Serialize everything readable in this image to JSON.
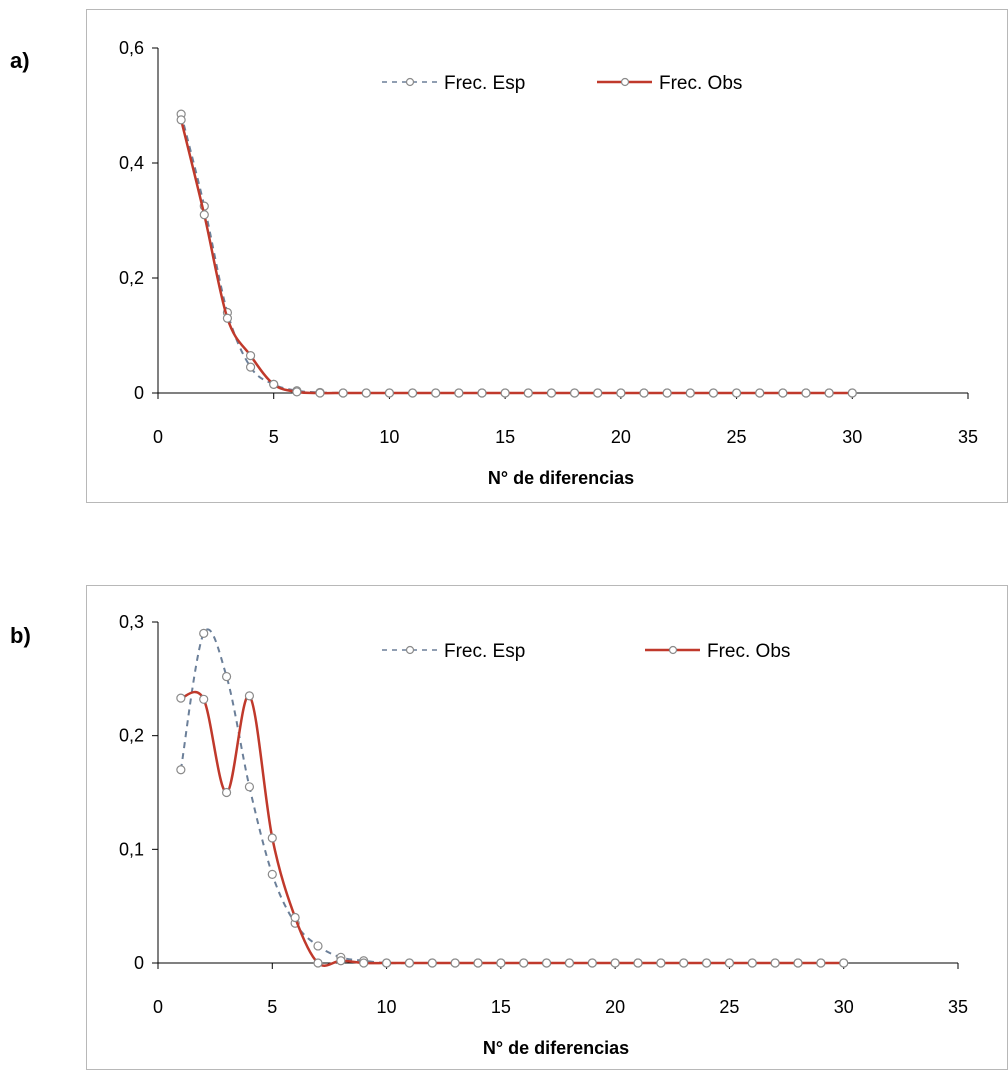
{
  "chart_data": [
    {
      "panel_label": "a)",
      "type": "line",
      "xlabel": "N° de diferencias",
      "ylabel": "",
      "xlim": [
        0,
        35
      ],
      "ylim": [
        0,
        0.6
      ],
      "xticks": [
        0,
        5,
        10,
        15,
        20,
        25,
        30,
        35
      ],
      "xtick_labels": [
        "0",
        "5",
        "10",
        "15",
        "20",
        "25",
        "30",
        "35"
      ],
      "yticks": [
        0,
        0.2,
        0.4,
        0.6
      ],
      "ytick_labels": [
        "0",
        "0,2",
        "0,4",
        "0,6"
      ],
      "grid": false,
      "legend": "top-center",
      "series": [
        {
          "name": "Frec. Esp",
          "style": "dashed",
          "color": "#6b7f99",
          "x": [
            1,
            2,
            3,
            4,
            5,
            6,
            7,
            8,
            9,
            10,
            11,
            12,
            13,
            14,
            15,
            16,
            17,
            18,
            19,
            20,
            21,
            22,
            23,
            24,
            25,
            26,
            27,
            28,
            29,
            30
          ],
          "y": [
            0.485,
            0.325,
            0.14,
            0.045,
            0.015,
            0.004,
            0.001,
            0,
            0,
            0,
            0,
            0,
            0,
            0,
            0,
            0,
            0,
            0,
            0,
            0,
            0,
            0,
            0,
            0,
            0,
            0,
            0,
            0,
            0,
            0
          ]
        },
        {
          "name": "Frec. Obs",
          "style": "solid",
          "color": "#c0392b",
          "x": [
            1,
            2,
            3,
            4,
            5,
            6,
            7,
            8,
            9,
            10,
            11,
            12,
            13,
            14,
            15,
            16,
            17,
            18,
            19,
            20,
            21,
            22,
            23,
            24,
            25,
            26,
            27,
            28,
            29,
            30
          ],
          "y": [
            0.475,
            0.31,
            0.13,
            0.065,
            0.015,
            0.002,
            0,
            0,
            0,
            0,
            0,
            0,
            0,
            0,
            0,
            0,
            0,
            0,
            0,
            0,
            0,
            0,
            0,
            0,
            0,
            0,
            0,
            0,
            0,
            0
          ]
        }
      ]
    },
    {
      "panel_label": "b)",
      "type": "line",
      "xlabel": "N° de diferencias",
      "ylabel": "",
      "xlim": [
        0,
        35
      ],
      "ylim": [
        0,
        0.3
      ],
      "xticks": [
        0,
        5,
        10,
        15,
        20,
        25,
        30,
        35
      ],
      "xtick_labels": [
        "0",
        "5",
        "10",
        "15",
        "20",
        "25",
        "30",
        "35"
      ],
      "yticks": [
        0,
        0.1,
        0.2,
        0.3
      ],
      "ytick_labels": [
        "0",
        "0,1",
        "0,2",
        "0,3"
      ],
      "grid": false,
      "legend": "top-center",
      "series": [
        {
          "name": "Frec. Esp",
          "style": "dashed",
          "color": "#6b7f99",
          "x": [
            1,
            2,
            3,
            4,
            5,
            6,
            7,
            8,
            9,
            10,
            11,
            12,
            13,
            14,
            15,
            16,
            17,
            18,
            19,
            20,
            21,
            22,
            23,
            24,
            25,
            26,
            27,
            28,
            29,
            30
          ],
          "y": [
            0.17,
            0.29,
            0.252,
            0.155,
            0.078,
            0.035,
            0.015,
            0.005,
            0.002,
            0,
            0,
            0,
            0,
            0,
            0,
            0,
            0,
            0,
            0,
            0,
            0,
            0,
            0,
            0,
            0,
            0,
            0,
            0,
            0,
            0
          ]
        },
        {
          "name": "Frec. Obs",
          "style": "solid",
          "color": "#c0392b",
          "x": [
            1,
            2,
            3,
            4,
            5,
            6,
            7,
            8,
            9,
            10,
            11,
            12,
            13,
            14,
            15,
            16,
            17,
            18,
            19,
            20,
            21,
            22,
            23,
            24,
            25,
            26,
            27,
            28,
            29,
            30
          ],
          "y": [
            0.233,
            0.232,
            0.15,
            0.235,
            0.11,
            0.04,
            0,
            0.002,
            0,
            0,
            0,
            0,
            0,
            0,
            0,
            0,
            0,
            0,
            0,
            0,
            0,
            0,
            0,
            0,
            0,
            0,
            0,
            0,
            0,
            0
          ]
        }
      ]
    }
  ]
}
